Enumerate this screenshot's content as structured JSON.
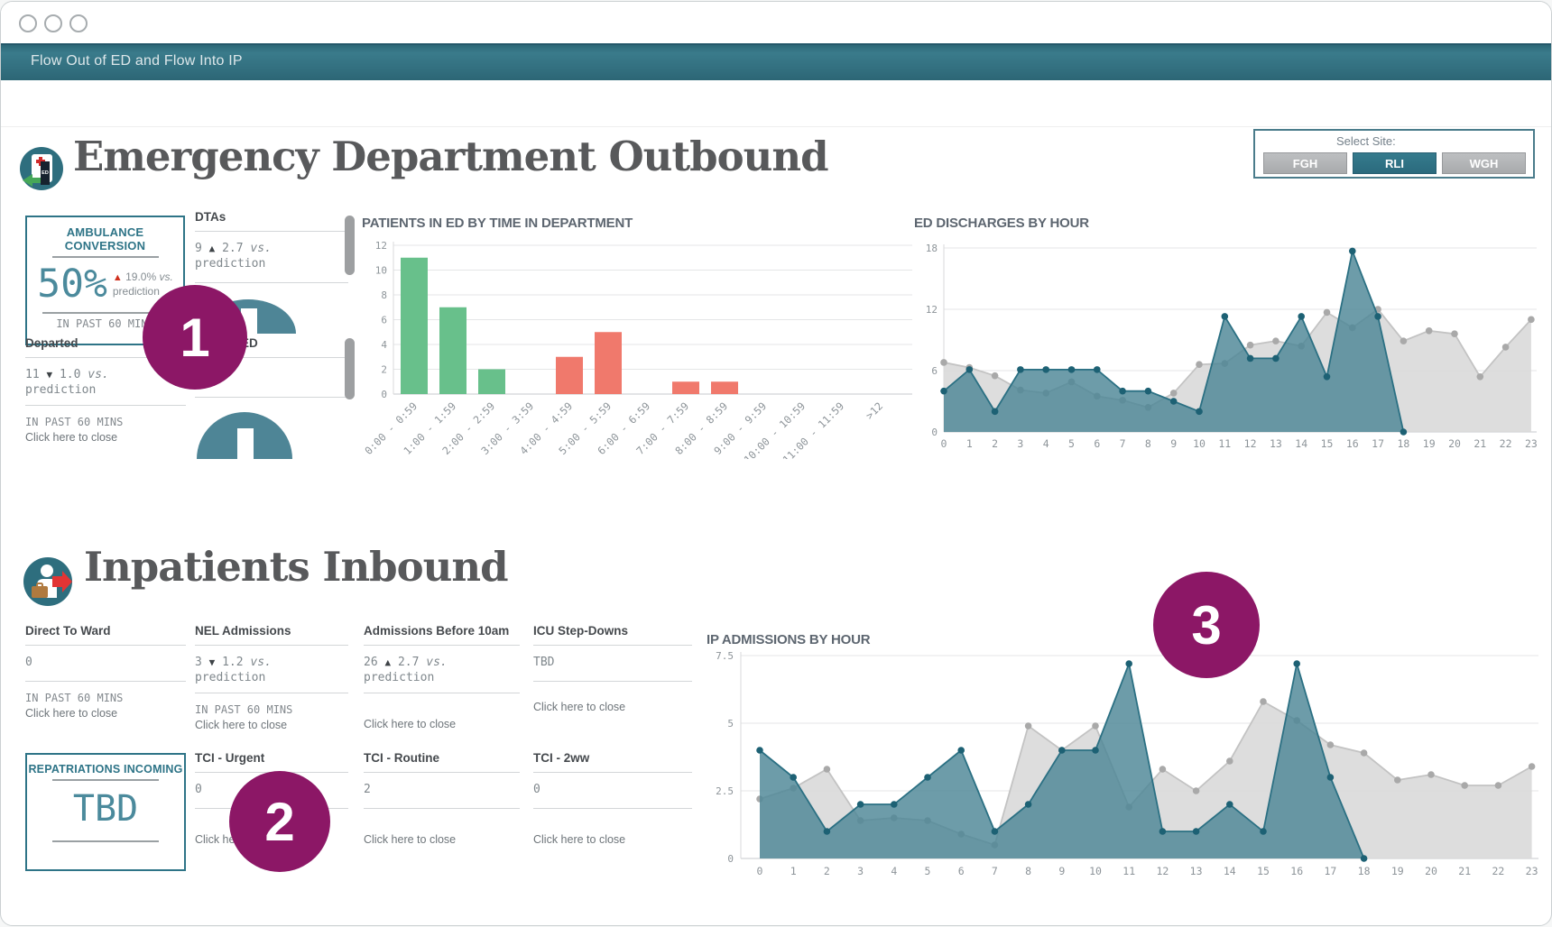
{
  "window": {
    "title_bar": "Flow Out of ED and Flow Into IP"
  },
  "strings": {
    "vs": "vs."
  },
  "site_selector": {
    "label": "Select Site:",
    "options": [
      {
        "label": "FGH",
        "selected": false
      },
      {
        "label": "RLI",
        "selected": true
      },
      {
        "label": "WGH",
        "selected": false
      }
    ]
  },
  "ed": {
    "heading": "Emergency Department Outbound",
    "ambulance": {
      "title": "AMBULANCE CONVERSION",
      "value": "50%",
      "delta_icon": "▲",
      "delta": "19.0%",
      "note": "prediction",
      "footer": "IN PAST 60 MINS"
    },
    "dtas": {
      "label": "DTAs",
      "value": "9",
      "delta_icon": "▲",
      "delta": "2.7",
      "note": "prediction"
    },
    "admitted": {
      "label": "ADMITTED"
    },
    "departed": {
      "label": "Departed",
      "value": "11",
      "delta_icon": "▼",
      "delta": "1.0",
      "note": "prediction",
      "footer1": "IN PAST 60 MINS",
      "footer2": "Click here to close"
    }
  },
  "ip": {
    "heading": "Inpatients Inbound",
    "direct_to_ward": {
      "label": "Direct To Ward",
      "value": "0",
      "footer1": "IN PAST 60 MINS",
      "footer2": "Click here to close"
    },
    "nel": {
      "label": "NEL Admissions",
      "value": "3",
      "delta_icon": "▼",
      "delta": "1.2",
      "note": "prediction",
      "footer1": "IN PAST 60 MINS",
      "footer2": "Click here to close"
    },
    "before10": {
      "label": "Admissions Before 10am",
      "value": "26",
      "delta_icon": "▲",
      "delta": "2.7",
      "note": "prediction",
      "footer2": "Click here to close"
    },
    "icu": {
      "label": "ICU Step-Downs",
      "value": "TBD",
      "footer2": "Click here to close"
    },
    "repatriations": {
      "title": "REPATRIATIONS INCOMING",
      "value": "TBD"
    },
    "tci_urgent": {
      "label": "TCI - Urgent",
      "value": "0",
      "footer2": "Click here to close"
    },
    "tci_routine": {
      "label": "TCI - Routine",
      "value": "2",
      "footer2": "Click here to close"
    },
    "tci_2ww": {
      "label": "TCI - 2ww",
      "value": "0",
      "footer2": "Click here to close"
    }
  },
  "annotations": [
    {
      "label": "1"
    },
    {
      "label": "2"
    },
    {
      "label": "3"
    }
  ],
  "chart_data": [
    {
      "id": "patients_in_ed",
      "type": "bar",
      "title": "PATIENTS IN ED BY TIME IN DEPARTMENT",
      "categories": [
        "0:00 - 0:59",
        "1:00 - 1:59",
        "2:00 - 2:59",
        "3:00 - 3:59",
        "4:00 - 4:59",
        "5:00 - 5:59",
        "6:00 - 6:59",
        "7:00 - 7:59",
        "8:00 - 8:59",
        "9:00 - 9:59",
        "10:00 - 10:59",
        "11:00 - 11:59",
        ">12"
      ],
      "values": [
        11,
        7,
        2,
        0,
        3,
        5,
        0,
        1,
        1,
        0,
        0,
        0,
        0
      ],
      "bar_colors": [
        "#68c08b",
        "#68c08b",
        "#68c08b",
        "#68c08b",
        "#f0796c",
        "#f0796c",
        "#f0796c",
        "#f0796c",
        "#f0796c",
        "#f0796c",
        "#f0796c",
        "#f0796c",
        "#f0796c"
      ],
      "ylim": [
        0,
        12
      ],
      "yticks": [
        0,
        2,
        4,
        6,
        8,
        10,
        12
      ],
      "grid": true
    },
    {
      "id": "ed_discharges",
      "type": "area",
      "title": "ED DISCHARGES BY HOUR",
      "x": [
        0,
        1,
        2,
        3,
        4,
        5,
        6,
        7,
        8,
        9,
        10,
        11,
        12,
        13,
        14,
        15,
        16,
        17,
        18,
        19,
        20,
        21,
        22,
        23
      ],
      "series": [
        {
          "name": "gray-prediction-area",
          "fill": "#d9d9d9",
          "fill_opacity": 0.9,
          "line": "#c3c3c3",
          "dot": "#a9a9a9",
          "values": [
            6.8,
            6.3,
            5.5,
            4.1,
            3.8,
            4.9,
            3.5,
            3.1,
            2.4,
            3.8,
            6.6,
            6.7,
            8.5,
            8.9,
            8.4,
            11.7,
            10.2,
            12,
            8.9,
            9.9,
            9.6,
            5.4,
            8.3,
            11
          ]
        },
        {
          "name": "teal-actual-area",
          "fill": "#4d8696",
          "fill_opacity": 0.82,
          "line": "#2b7083",
          "dot": "#1d6174",
          "values": [
            4,
            6.1,
            2,
            6.1,
            6.1,
            6.1,
            6.1,
            4,
            4,
            3,
            2,
            11.3,
            7.2,
            7.2,
            11.3,
            5.4,
            17.7,
            11.3,
            0
          ]
        }
      ],
      "ylim": [
        0,
        18
      ],
      "yticks": [
        0,
        6,
        12,
        18
      ],
      "grid": true
    },
    {
      "id": "ip_admissions",
      "type": "area",
      "title": "IP ADMISSIONS BY HOUR",
      "x": [
        0,
        1,
        2,
        3,
        4,
        5,
        6,
        7,
        8,
        9,
        10,
        11,
        12,
        13,
        14,
        15,
        16,
        17,
        18,
        19,
        20,
        21,
        22,
        23
      ],
      "series": [
        {
          "name": "gray-prediction-area",
          "fill": "#d9d9d9",
          "fill_opacity": 0.9,
          "line": "#c3c3c3",
          "dot": "#a9a9a9",
          "values": [
            2.2,
            2.6,
            3.3,
            1.4,
            1.5,
            1.4,
            0.9,
            0.5,
            4.9,
            4,
            4.9,
            1.9,
            3.3,
            2.5,
            3.6,
            5.8,
            5.1,
            4.2,
            3.9,
            2.9,
            3.1,
            2.7,
            2.7,
            3.4
          ]
        },
        {
          "name": "teal-actual-area",
          "fill": "#4d8696",
          "fill_opacity": 0.82,
          "line": "#2b7083",
          "dot": "#1d6174",
          "values": [
            4,
            3,
            1,
            2,
            2,
            3,
            4,
            1,
            2,
            4,
            4,
            7.2,
            1,
            1,
            2,
            1,
            7.2,
            3,
            0
          ]
        }
      ],
      "ylim": [
        0,
        7.5
      ],
      "yticks": [
        0,
        2.5,
        5,
        7.5
      ],
      "grid": true
    }
  ]
}
